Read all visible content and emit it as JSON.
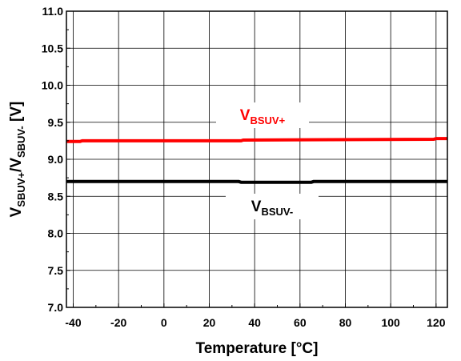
{
  "chart_data": {
    "type": "line",
    "xlabel": "Temperature [°C]",
    "ylabel": "",
    "ylabel_parts": [
      {
        "text": "V",
        "sub": false
      },
      {
        "text": "SBUV+",
        "sub": true
      },
      {
        "text": "/V",
        "sub": false
      },
      {
        "text": "SBUV-",
        "sub": true
      },
      {
        "text": " [V]",
        "sub": false
      }
    ],
    "xlim": [
      -43,
      125
    ],
    "ylim": [
      7.0,
      11.0
    ],
    "xticks": [
      "-40",
      "-20",
      "0",
      "20",
      "40",
      "60",
      "80",
      "100",
      "120"
    ],
    "xtick_values": [
      -40,
      -20,
      0,
      20,
      40,
      60,
      80,
      100,
      120
    ],
    "yticks": [
      "7.0",
      "7.5",
      "8.0",
      "8.5",
      "9.0",
      "9.5",
      "10.0",
      "10.5",
      "11.0"
    ],
    "ytick_values": [
      7.0,
      7.5,
      8.0,
      8.5,
      9.0,
      9.5,
      10.0,
      10.5,
      11.0
    ],
    "grid": true,
    "series": [
      {
        "name": "V_BSUV+",
        "color": "#ff0000",
        "x": [
          -43,
          -37,
          -36,
          34,
          35,
          119,
          120,
          125
        ],
        "y": [
          9.24,
          9.24,
          9.25,
          9.25,
          9.26,
          9.27,
          9.28,
          9.28
        ]
      },
      {
        "name": "V_BSUV-",
        "color": "#000000",
        "x": [
          -43,
          33,
          34,
          65,
          66,
          125
        ],
        "y": [
          8.7,
          8.7,
          8.69,
          8.69,
          8.7,
          8.7
        ]
      }
    ],
    "annotations": [
      {
        "main": "V",
        "sub": "BSUV+",
        "color": "#ff0000",
        "series": 0
      },
      {
        "main": "V",
        "sub": "BSUV-",
        "color": "#000000",
        "series": 1
      }
    ]
  }
}
